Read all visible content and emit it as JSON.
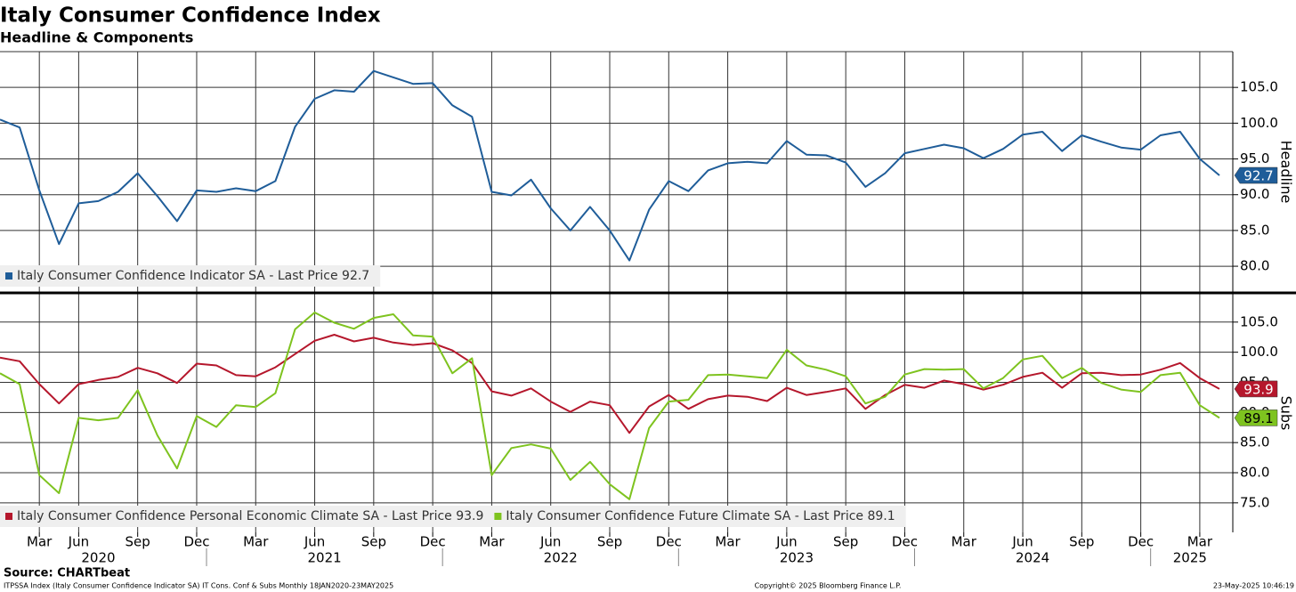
{
  "chart_data": [
    {
      "type": "line",
      "title": "Italy Consumer Confidence Index",
      "subtitle": "Headline & Components",
      "y_label": "Headline",
      "x": [
        "2020-01",
        "2020-02",
        "2020-03",
        "2020-05",
        "2020-06",
        "2020-07",
        "2020-08",
        "2020-09",
        "2020-10",
        "2020-11",
        "2020-12",
        "2021-01",
        "2021-02",
        "2021-03",
        "2021-04",
        "2021-05",
        "2021-06",
        "2021-07",
        "2021-08",
        "2021-09",
        "2021-10",
        "2021-11",
        "2021-12",
        "2022-01",
        "2022-02",
        "2022-03",
        "2022-04",
        "2022-05",
        "2022-06",
        "2022-07",
        "2022-08",
        "2022-09",
        "2022-10",
        "2022-11",
        "2022-12",
        "2023-01",
        "2023-02",
        "2023-03",
        "2023-04",
        "2023-05",
        "2023-06",
        "2023-07",
        "2023-08",
        "2023-09",
        "2023-10",
        "2023-11",
        "2023-12",
        "2024-01",
        "2024-02",
        "2024-03",
        "2024-04",
        "2024-05",
        "2024-06",
        "2024-07",
        "2024-08",
        "2024-09",
        "2024-10",
        "2024-11",
        "2024-12",
        "2025-01",
        "2025-02",
        "2025-03",
        "2025-04"
      ],
      "series": [
        {
          "name": "Italy Consumer Confidence Indicator SA - Last Price 92.7",
          "color": "#1f5d99",
          "values": [
            100.5,
            99.4,
            90.6,
            83.1,
            88.8,
            89.1,
            90.4,
            93.0,
            89.8,
            86.3,
            90.6,
            90.4,
            90.9,
            90.5,
            91.9,
            99.5,
            103.4,
            104.6,
            104.4,
            107.3,
            106.4,
            105.5,
            105.6,
            102.5,
            100.9,
            90.4,
            89.9,
            92.1,
            88.1,
            85.0,
            88.3,
            85.0,
            80.8,
            87.9,
            91.9,
            90.5,
            93.4,
            94.4,
            94.6,
            94.4,
            97.5,
            95.6,
            95.5,
            94.5,
            91.1,
            93.0,
            95.8,
            96.4,
            97.0,
            96.5,
            95.1,
            96.4,
            98.4,
            98.8,
            96.1,
            98.3,
            97.4,
            96.6,
            96.3,
            98.3,
            98.8,
            95.0,
            92.7
          ]
        }
      ],
      "ylim": [
        76.4,
        110
      ],
      "yticks": [
        {
          "value": 80,
          "label": "80.0"
        },
        {
          "value": 85,
          "label": "85.0"
        },
        {
          "value": 90,
          "label": "90.0"
        },
        {
          "value": 95,
          "label": "95.0"
        },
        {
          "value": 100,
          "label": "100.0"
        },
        {
          "value": 105,
          "label": "105.0"
        }
      ],
      "grid": true
    },
    {
      "type": "line",
      "y_label": "Subs",
      "x": [
        "2020-01",
        "2020-02",
        "2020-03",
        "2020-05",
        "2020-06",
        "2020-07",
        "2020-08",
        "2020-09",
        "2020-10",
        "2020-11",
        "2020-12",
        "2021-01",
        "2021-02",
        "2021-03",
        "2021-04",
        "2021-05",
        "2021-06",
        "2021-07",
        "2021-08",
        "2021-09",
        "2021-10",
        "2021-11",
        "2021-12",
        "2022-01",
        "2022-02",
        "2022-03",
        "2022-04",
        "2022-05",
        "2022-06",
        "2022-07",
        "2022-08",
        "2022-09",
        "2022-10",
        "2022-11",
        "2022-12",
        "2023-01",
        "2023-02",
        "2023-03",
        "2023-04",
        "2023-05",
        "2023-06",
        "2023-07",
        "2023-08",
        "2023-09",
        "2023-10",
        "2023-11",
        "2023-12",
        "2024-01",
        "2024-02",
        "2024-03",
        "2024-04",
        "2024-05",
        "2024-06",
        "2024-07",
        "2024-08",
        "2024-09",
        "2024-10",
        "2024-11",
        "2024-12",
        "2025-01",
        "2025-02",
        "2025-03",
        "2025-04"
      ],
      "series": [
        {
          "name": "Italy Consumer Confidence Personal Economic Climate SA - Last Price 93.9",
          "color": "#b5172c",
          "values": [
            99.1,
            98.5,
            94.7,
            91.5,
            94.7,
            95.4,
            95.9,
            97.4,
            96.5,
            94.9,
            98.1,
            97.8,
            96.2,
            96.0,
            97.5,
            99.7,
            101.9,
            102.9,
            101.8,
            102.4,
            101.6,
            101.2,
            101.5,
            100.3,
            98.2,
            93.5,
            92.8,
            94.0,
            91.8,
            90.1,
            91.8,
            91.2,
            86.6,
            91.0,
            92.9,
            90.6,
            92.2,
            92.8,
            92.6,
            91.9,
            94.1,
            92.9,
            93.4,
            94.0,
            90.6,
            92.9,
            94.6,
            94.1,
            95.3,
            94.7,
            93.8,
            94.6,
            95.9,
            96.6,
            94.1,
            96.5,
            96.6,
            96.2,
            96.3,
            97.1,
            98.2,
            95.7,
            93.9
          ]
        },
        {
          "name": "Italy Consumer Confidence Future Climate SA - Last Price 89.1",
          "color": "#7ec31f",
          "values": [
            96.5,
            94.7,
            79.6,
            76.6,
            89.1,
            88.7,
            89.1,
            93.7,
            86.2,
            80.7,
            89.4,
            87.6,
            91.2,
            90.9,
            93.2,
            103.8,
            106.6,
            104.9,
            103.9,
            105.7,
            106.3,
            102.8,
            102.6,
            96.5,
            99.0,
            79.6,
            84.1,
            84.7,
            84.0,
            78.8,
            81.8,
            78.1,
            75.6,
            87.4,
            91.8,
            92.1,
            96.2,
            96.3,
            96.0,
            95.7,
            100.4,
            97.8,
            97.1,
            96.0,
            91.5,
            92.6,
            96.3,
            97.2,
            97.1,
            97.2,
            94.0,
            95.7,
            98.8,
            99.4,
            95.7,
            97.4,
            94.9,
            93.8,
            93.4,
            96.2,
            96.6,
            91.2,
            89.1
          ]
        }
      ],
      "ylim": [
        70.1,
        109.7
      ],
      "yticks": [
        {
          "value": 75,
          "label": "75.0"
        },
        {
          "value": 80,
          "label": "80.0"
        },
        {
          "value": 85,
          "label": "85.0"
        },
        {
          "value": 90,
          "label": "90.0"
        },
        {
          "value": 95,
          "label": "95.0"
        },
        {
          "value": 100,
          "label": "100.0"
        },
        {
          "value": 105,
          "label": "105.0"
        }
      ],
      "xticks": [
        {
          "value": "2020-03",
          "label": "Mar"
        },
        {
          "value": "2020-06",
          "label": "Jun"
        },
        {
          "value": "2020-09",
          "label": "Sep"
        },
        {
          "value": "2020-12",
          "label": "Dec"
        },
        {
          "value": "2021-03",
          "label": "Mar"
        },
        {
          "value": "2021-06",
          "label": "Jun"
        },
        {
          "value": "2021-09",
          "label": "Sep"
        },
        {
          "value": "2021-12",
          "label": "Dec"
        },
        {
          "value": "2022-03",
          "label": "Mar"
        },
        {
          "value": "2022-06",
          "label": "Jun"
        },
        {
          "value": "2022-09",
          "label": "Sep"
        },
        {
          "value": "2022-12",
          "label": "Dec"
        },
        {
          "value": "2023-03",
          "label": "Mar"
        },
        {
          "value": "2023-06",
          "label": "Jun"
        },
        {
          "value": "2023-09",
          "label": "Sep"
        },
        {
          "value": "2023-12",
          "label": "Dec"
        },
        {
          "value": "2024-03",
          "label": "Mar"
        },
        {
          "value": "2024-06",
          "label": "Jun"
        },
        {
          "value": "2024-09",
          "label": "Sep"
        },
        {
          "value": "2024-12",
          "label": "Dec"
        },
        {
          "value": "2025-03",
          "label": "Mar"
        }
      ],
      "years": [
        "2020",
        "2021",
        "2022",
        "2023",
        "2024",
        "2025"
      ],
      "grid": true
    }
  ],
  "footer": {
    "source": "Source: CHARTbeat",
    "description": "ITPSSA Index (Italy Consumer Confidence Indicator SA) IT Cons. Conf & Subs  Monthly 18JAN2020-23MAY2025",
    "copyright": "Copyright© 2025 Bloomberg Finance L.P.",
    "timestamp": "23-May-2025 10:46:19"
  }
}
